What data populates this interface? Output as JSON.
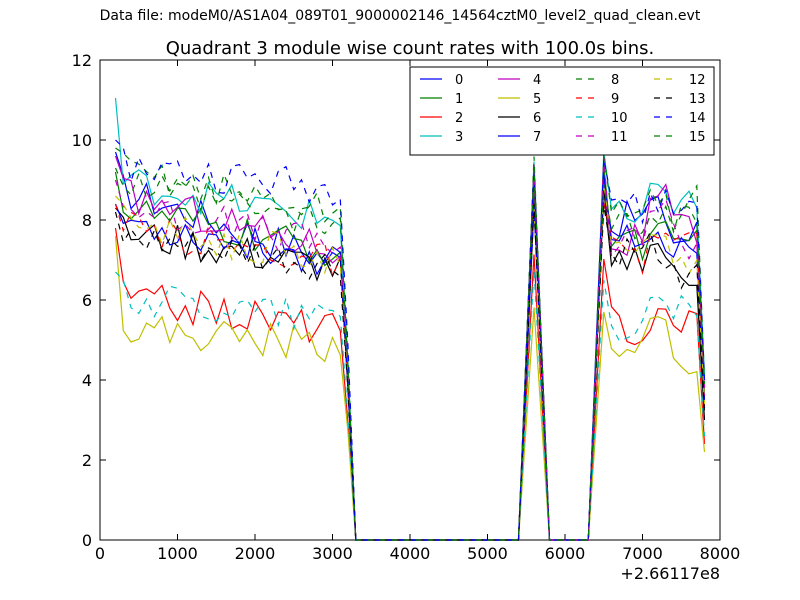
{
  "supertitle": "Data file: modeM0/AS1A04_089T01_9000002146_14564cztM0_level2_quad_clean.evt",
  "chart_data": {
    "type": "line",
    "title": "Quadrant 3 module wise count rates with 100.0s bins.",
    "xlabel": "",
    "ylabel": "",
    "xlim": [
      0,
      8000
    ],
    "ylim": [
      0,
      12
    ],
    "xticks": [
      0,
      1000,
      2000,
      3000,
      4000,
      5000,
      6000,
      7000,
      8000
    ],
    "yticks": [
      0,
      2,
      4,
      6,
      8,
      10,
      12
    ],
    "x_offset_label": "+2.66117e8",
    "grid": false,
    "legend_position": "top-right",
    "legend_columns": 4,
    "series": [
      {
        "name": "0",
        "color": "#0000ff",
        "style": "solid",
        "base": 8.8,
        "end": 7.0,
        "post_base": 8.2,
        "start_val": 9.7,
        "final": 3.5
      },
      {
        "name": "1",
        "color": "#008000",
        "style": "solid",
        "base": 8.3,
        "end": 7.2,
        "post_base": 7.8,
        "start_val": 9.2,
        "final": 3.6
      },
      {
        "name": "2",
        "color": "#ff0000",
        "style": "solid",
        "base": 6.1,
        "end": 5.3,
        "post_base": 5.7,
        "start_val": 7.8,
        "final": 2.4
      },
      {
        "name": "3",
        "color": "#00bfbf",
        "style": "solid",
        "base": 9.0,
        "end": 8.0,
        "post_base": 8.6,
        "start_val": 11.05,
        "final": 4.1
      },
      {
        "name": "4",
        "color": "#bf00bf",
        "style": "solid",
        "base": 8.7,
        "end": 7.3,
        "post_base": 8.1,
        "start_val": 9.6,
        "final": 3.8
      },
      {
        "name": "5",
        "color": "#bfbf00",
        "style": "solid",
        "base": 5.3,
        "end": 4.9,
        "post_base": 5.1,
        "start_val": 7.6,
        "final": 2.2
      },
      {
        "name": "6",
        "color": "#000000",
        "style": "solid",
        "base": 7.7,
        "end": 6.8,
        "post_base": 7.2,
        "start_val": 8.3,
        "final": 3.0
      },
      {
        "name": "7",
        "color": "#0000ff",
        "style": "solid",
        "base": 8.0,
        "end": 7.0,
        "post_base": 7.8,
        "start_val": 8.4,
        "final": 3.3
      },
      {
        "name": "8",
        "color": "#008000",
        "style": "dashed",
        "base": 9.3,
        "end": 8.2,
        "post_base": 8.6,
        "start_val": 9.8,
        "final": 4.0
      },
      {
        "name": "9",
        "color": "#ff0000",
        "style": "dashed",
        "base": 7.8,
        "end": 7.0,
        "post_base": 7.6,
        "start_val": 8.4,
        "final": 3.3
      },
      {
        "name": "10",
        "color": "#00bfbf",
        "style": "dashed",
        "base": 6.1,
        "end": 5.6,
        "post_base": 5.9,
        "start_val": 6.7,
        "final": 2.6
      },
      {
        "name": "11",
        "color": "#bf00bf",
        "style": "dashed",
        "base": 8.4,
        "end": 7.4,
        "post_base": 8.0,
        "start_val": 9.0,
        "final": 3.6
      },
      {
        "name": "12",
        "color": "#bfbf00",
        "style": "dashed",
        "base": 8.0,
        "end": 7.0,
        "post_base": 7.6,
        "start_val": 8.6,
        "final": 3.4
      },
      {
        "name": "13",
        "color": "#000000",
        "style": "dashed",
        "base": 7.5,
        "end": 6.8,
        "post_base": 7.3,
        "start_val": 8.2,
        "final": 3.2
      },
      {
        "name": "14",
        "color": "#0000ff",
        "style": "dashed",
        "base": 9.4,
        "end": 8.8,
        "post_base": 8.7,
        "start_val": 10.0,
        "final": 4.0
      },
      {
        "name": "15",
        "color": "#008000",
        "style": "dashed",
        "base": 8.9,
        "end": 7.8,
        "post_base": 8.3,
        "start_val": 9.3,
        "final": 3.9
      }
    ],
    "segments": {
      "first_active_range": [
        200,
        3000
      ],
      "drop_to_zero_at": 3300,
      "spike_one_rise": [
        5400,
        5600,
        5800
      ],
      "spike_two_rise": [
        6300,
        6500
      ],
      "last_range_end": 7800,
      "bin_width": 100
    }
  }
}
